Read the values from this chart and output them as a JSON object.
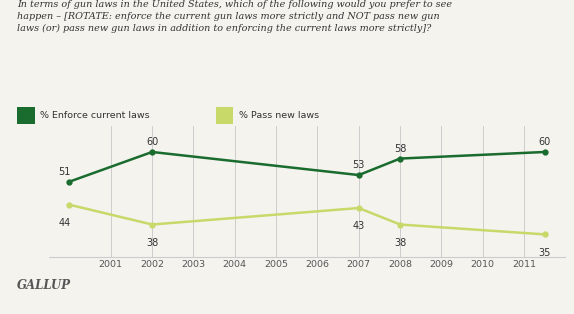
{
  "title_text": "In terms of gun laws in the United States, which of the following would you prefer to see\nhappen – [ROTATE: enforce the current gun laws more strictly and NOT pass new gun\nlaws (or) pass new gun laws in addition to enforcing the current laws more strictly]?",
  "enforce_x": [
    2000,
    2002,
    2007,
    2008,
    2011.5
  ],
  "enforce_y": [
    51,
    60,
    53,
    58,
    60
  ],
  "pass_x": [
    2000,
    2002,
    2007,
    2008,
    2011.5
  ],
  "pass_y": [
    44,
    38,
    43,
    38,
    35
  ],
  "enforce_color": "#1a6b2e",
  "pass_color": "#c8d96a",
  "enforce_label": "% Enforce current laws",
  "pass_label": "% Pass new laws",
  "gallup_text": "GALLUP",
  "xmin": 1999.5,
  "xmax": 2012.0,
  "ymin": 28,
  "ymax": 68,
  "bg_color": "#f5f3ee",
  "grid_color": "#cccccc",
  "enforce_label_dx": [
    -0.12,
    0.0,
    0.0,
    0.0,
    0.0
  ],
  "enforce_label_dy": [
    1.5,
    1.5,
    1.5,
    1.5,
    1.5
  ],
  "pass_label_dx": [
    -0.12,
    0.0,
    0.0,
    0.0,
    0.0
  ],
  "pass_label_dy": [
    -4.0,
    -4.0,
    -4.0,
    -4.0,
    -4.0
  ]
}
